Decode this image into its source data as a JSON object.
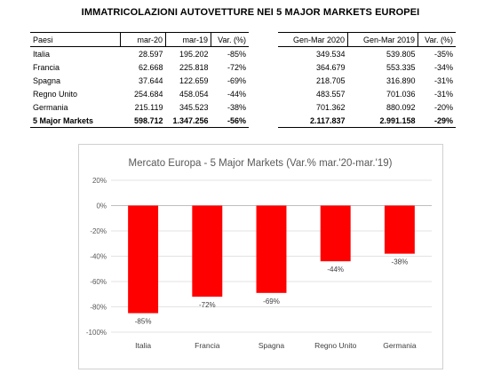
{
  "page_title": "IMMATRICOLAZIONI AUTOVETTURE NEI 5 MAJOR MARKETS EUROPEI",
  "table_left": {
    "headers": [
      "Paesi",
      "mar-20",
      "mar-19",
      "Var. (%)"
    ],
    "rows": [
      [
        "Italia",
        "28.597",
        "195.202",
        "-85%"
      ],
      [
        "Francia",
        "62.668",
        "225.818",
        "-72%"
      ],
      [
        "Spagna",
        "37.644",
        "122.659",
        "-69%"
      ],
      [
        "Regno Unito",
        "254.684",
        "458.054",
        "-44%"
      ],
      [
        "Germania",
        "215.119",
        "345.523",
        "-38%"
      ]
    ],
    "total": [
      "5 Major Markets",
      "598.712",
      "1.347.256",
      "-56%"
    ]
  },
  "table_right": {
    "headers": [
      "Gen-Mar 2020",
      "Gen-Mar 2019",
      "Var. (%)"
    ],
    "rows": [
      [
        "349.534",
        "539.805",
        "-35%"
      ],
      [
        "364.679",
        "553.335",
        "-34%"
      ],
      [
        "218.705",
        "316.890",
        "-31%"
      ],
      [
        "483.557",
        "701.036",
        "-31%"
      ],
      [
        "701.362",
        "880.092",
        "-20%"
      ]
    ],
    "total": [
      "2.117.837",
      "2.991.158",
      "-29%"
    ]
  },
  "chart_data": {
    "type": "bar",
    "title": "Mercato Europa - 5 Major Markets (Var.% mar.'20-mar.'19)",
    "categories": [
      "Italia",
      "Francia",
      "Spagna",
      "Regno Unito",
      "Germania"
    ],
    "values": [
      -85,
      -72,
      -69,
      -44,
      -38
    ],
    "data_labels": [
      "-85%",
      "-72%",
      "-69%",
      "-44%",
      "-38%"
    ],
    "ylim": [
      -100,
      20
    ],
    "yticks": [
      20,
      0,
      -20,
      -40,
      -60,
      -80,
      -100
    ],
    "ytick_labels": [
      "20%",
      "0%",
      "-20%",
      "-40%",
      "-60%",
      "-80%",
      "-100%"
    ],
    "bar_color": "#ff0000",
    "grid": true,
    "legend": "none"
  }
}
